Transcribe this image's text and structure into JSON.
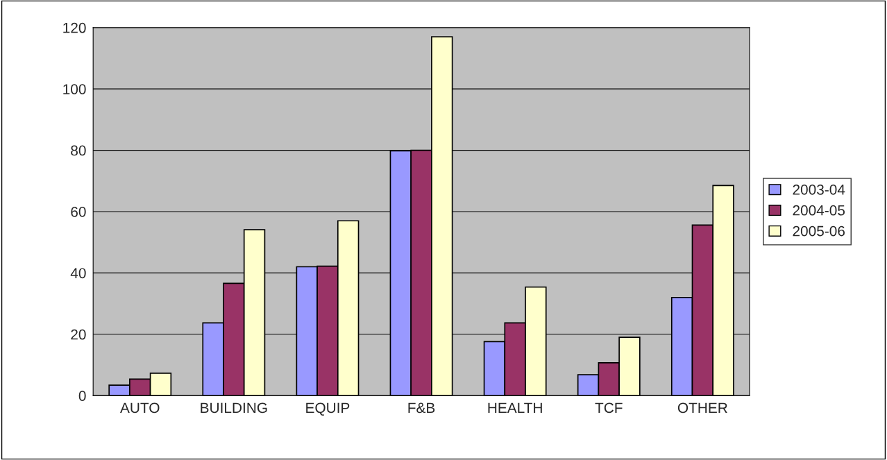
{
  "chart_data": {
    "type": "bar",
    "categories": [
      "AUTO",
      "BUILDING",
      "EQUIP",
      "F&B",
      "HEALTH",
      "TCF",
      "OTHER"
    ],
    "series": [
      {
        "name": "2003-04",
        "color": "#9999ff",
        "values": [
          3.4,
          23.7,
          42,
          79.8,
          17.6,
          6.8,
          32
        ]
      },
      {
        "name": "2004-05",
        "color": "#993366",
        "values": [
          5.4,
          36.6,
          42.2,
          80,
          23.7,
          10.7,
          55.6
        ]
      },
      {
        "name": "2005-06",
        "color": "#ffffcc",
        "values": [
          7.3,
          54.1,
          57,
          117,
          35.4,
          19,
          68.5
        ]
      }
    ],
    "ylim": [
      0,
      120
    ],
    "yticks": [
      0,
      20,
      40,
      60,
      80,
      100,
      120
    ],
    "grid": "y",
    "legend": "right"
  }
}
